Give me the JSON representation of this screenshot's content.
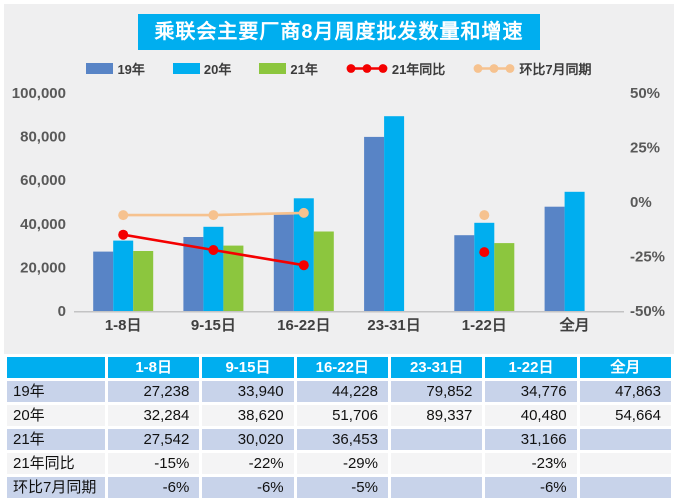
{
  "title": "乘联会主要厂商8月周度批发数量和增速",
  "colors": {
    "accent_cyan": "#00aeef",
    "bar_blue": "#5884c6",
    "bar_cyan": "#00aeef",
    "bar_green": "#8cc63e",
    "line_red": "#f40000",
    "line_tan": "#f6c28f",
    "panel_bg": "#efeff0",
    "table_row_alt": "#c8d3ea",
    "table_row_plain": "#f4f4f5",
    "axis_text": "#595959"
  },
  "legend": {
    "items": [
      {
        "label": "19年",
        "type": "bar",
        "color": "#5884c6"
      },
      {
        "label": "20年",
        "type": "bar",
        "color": "#00aeef"
      },
      {
        "label": "21年",
        "type": "bar",
        "color": "#8cc63e"
      },
      {
        "label": "21年同比",
        "type": "line",
        "color": "#f40000"
      },
      {
        "label": "环比7月同期",
        "type": "line",
        "color": "#f6c28f"
      }
    ]
  },
  "chart_data": {
    "type": "bar",
    "subtype": "grouped bars with two overlay marker lines on secondary percent axis",
    "title": "乘联会主要厂商8月周度批发数量和增速",
    "categories": [
      "1-8日",
      "9-15日",
      "16-22日",
      "23-31日",
      "1-22日",
      "全月"
    ],
    "series": [
      {
        "name": "19年",
        "type": "bar",
        "axis": "left",
        "color": "#5884c6",
        "values": [
          27238,
          33940,
          44228,
          79852,
          34776,
          47863
        ]
      },
      {
        "name": "20年",
        "type": "bar",
        "axis": "left",
        "color": "#00aeef",
        "values": [
          32284,
          38620,
          51706,
          89337,
          40480,
          54664
        ]
      },
      {
        "name": "21年",
        "type": "bar",
        "axis": "left",
        "color": "#8cc63e",
        "values": [
          27542,
          30020,
          36453,
          null,
          31166,
          null
        ]
      },
      {
        "name": "21年同比",
        "type": "line",
        "axis": "right",
        "color": "#f40000",
        "values": [
          -15,
          -22,
          -29,
          null,
          -23,
          null
        ]
      },
      {
        "name": "环比7月同期",
        "type": "line",
        "axis": "right",
        "color": "#f6c28f",
        "values": [
          -6,
          -6,
          -5,
          null,
          -6,
          null
        ]
      }
    ],
    "left_axis": {
      "min": 0,
      "max": 100000,
      "step": 20000,
      "tick_labels": [
        "0",
        "20,000",
        "40,000",
        "60,000",
        "80,000",
        "100,000"
      ]
    },
    "right_axis": {
      "min": -50,
      "max": 50,
      "step": 25,
      "tick_values": [
        -50,
        -25,
        0,
        25,
        50
      ],
      "tick_labels": [
        "-50%",
        "-25%",
        "0%",
        "25%",
        "50%"
      ]
    },
    "grid": false,
    "legend_position": "top"
  },
  "table": {
    "header": [
      "",
      "1-8日",
      "9-15日",
      "16-22日",
      "23-31日",
      "1-22日",
      "全月"
    ],
    "rows": [
      {
        "label": "19年",
        "cells": [
          "27,238",
          "33,940",
          "44,228",
          "79,852",
          "34,776",
          "47,863"
        ]
      },
      {
        "label": "20年",
        "cells": [
          "32,284",
          "38,620",
          "51,706",
          "89,337",
          "40,480",
          "54,664"
        ]
      },
      {
        "label": "21年",
        "cells": [
          "27,542",
          "30,020",
          "36,453",
          "",
          "31,166",
          ""
        ]
      },
      {
        "label": "21年同比",
        "cells": [
          "-15%",
          "-22%",
          "-29%",
          "",
          "-23%",
          ""
        ]
      },
      {
        "label": "环比7月同期",
        "cells": [
          "-6%",
          "-6%",
          "-5%",
          "",
          "-6%",
          ""
        ]
      }
    ]
  }
}
